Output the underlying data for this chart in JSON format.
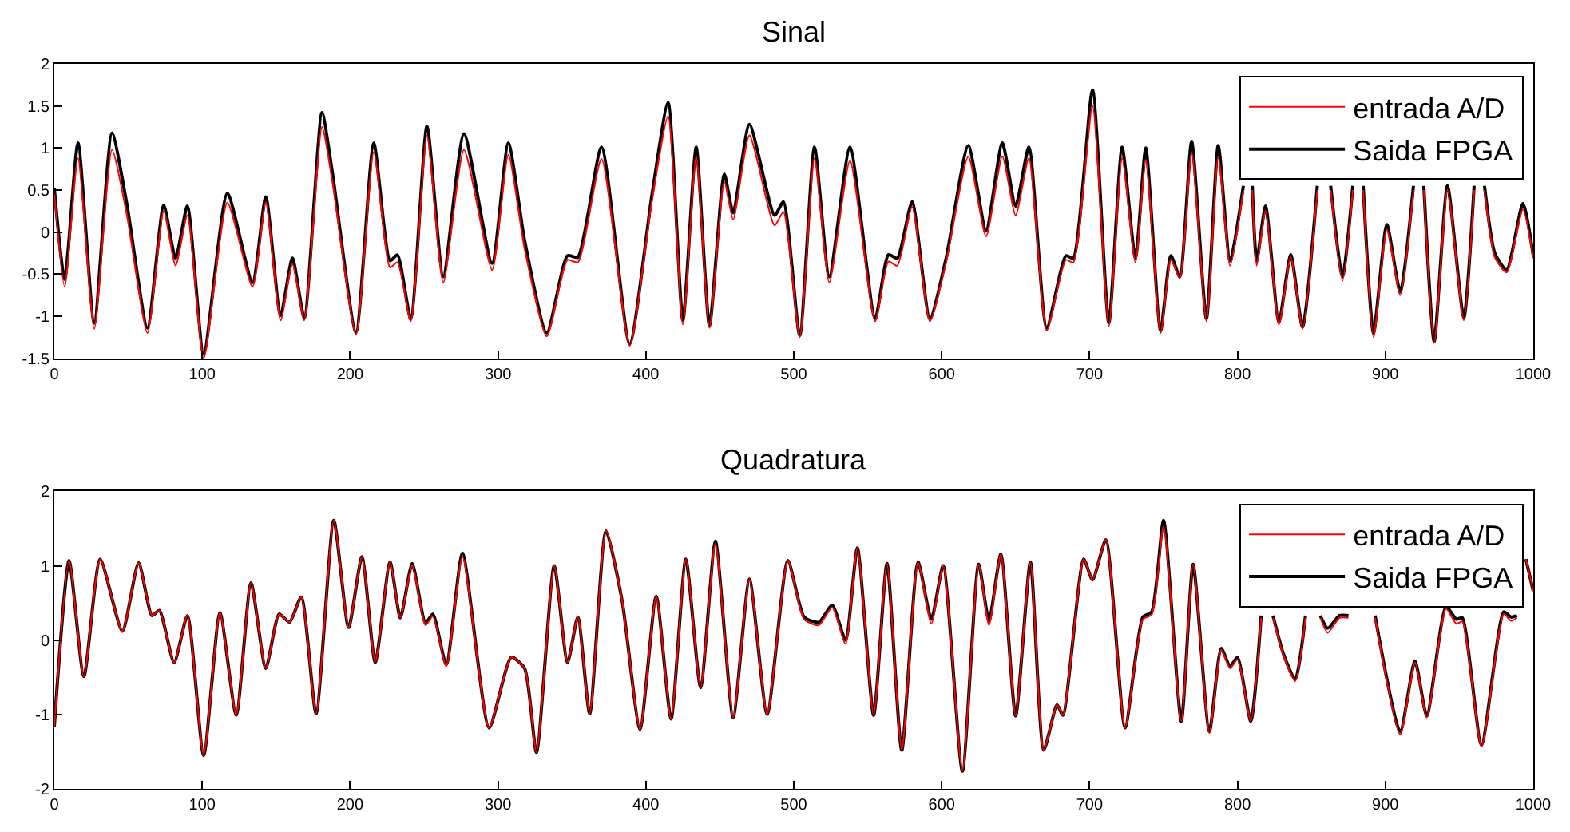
{
  "chart_data": [
    {
      "type": "line",
      "title": "Sinal",
      "legend": "top right",
      "line_style": "solid",
      "xlim": [
        0,
        1000
      ],
      "xticks": [
        0,
        100,
        200,
        300,
        400,
        500,
        600,
        700,
        800,
        900,
        1000
      ],
      "ylim": [
        -1.5,
        2
      ],
      "yticks": [
        -1.5,
        -1,
        -0.5,
        0,
        0.5,
        1,
        1.5,
        2
      ],
      "x": [
        0,
        7,
        16,
        27,
        39,
        49,
        63,
        74,
        82,
        90,
        101,
        117,
        134,
        143,
        153,
        161,
        169,
        181,
        188,
        204,
        216,
        227,
        232,
        241,
        252,
        263,
        277,
        296,
        307,
        318,
        333,
        347,
        354,
        370,
        389,
        404,
        415,
        425,
        434,
        443,
        453,
        459,
        470,
        487,
        493,
        504,
        514,
        524,
        538,
        555,
        564,
        570,
        580,
        592,
        603,
        618,
        630,
        641,
        650,
        659,
        671,
        684,
        689,
        702,
        713,
        722,
        731,
        738,
        748,
        755,
        761,
        769,
        779,
        787,
        795,
        804,
        807,
        810,
        813,
        819,
        828,
        836,
        844,
        854,
        858,
        863,
        871,
        878,
        881,
        885,
        892,
        901,
        910,
        919,
        922,
        926,
        933,
        942,
        953,
        960,
        963,
        967,
        974,
        982,
        993,
        1000
      ],
      "series": [
        {
          "name": "entrada A/D",
          "color": "#ff0000",
          "values": [
            0.45,
            -0.65,
            0.88,
            -1.15,
            0.98,
            0.21,
            -1.2,
            0.25,
            -0.4,
            0.2,
            -1.5,
            0.35,
            -0.65,
            0.35,
            -1.05,
            -0.38,
            -1.05,
            1.25,
            0.6,
            -1.22,
            0.95,
            -0.42,
            -0.36,
            -1.06,
            1.15,
            -0.6,
            0.98,
            -0.45,
            0.92,
            -0.2,
            -1.24,
            -0.33,
            -0.36,
            0.87,
            -1.35,
            0.36,
            1.38,
            -1.1,
            0.9,
            -1.14,
            0.6,
            0.15,
            1.15,
            0.08,
            0.24,
            -1.25,
            0.88,
            -0.6,
            0.85,
            -1.06,
            -0.35,
            -0.4,
            0.3,
            -1.06,
            -0.36,
            0.9,
            -0.05,
            0.9,
            0.2,
            0.88,
            -1.17,
            -0.33,
            -0.36,
            1.5,
            -1.12,
            0.88,
            -0.36,
            0.86,
            -1.2,
            -0.33,
            -0.55,
            0.95,
            -1.06,
            0.9,
            -0.4,
            0.5,
            null,
            0.5,
            -0.4,
            0.25,
            -1.1,
            -0.3,
            -1.15,
            0.5,
            null,
            0.5,
            -0.58,
            0.5,
            null,
            0.5,
            -1.25,
            0.03,
            -0.75,
            0.5,
            null,
            0.5,
            -1.32,
            0.5,
            -1.05,
            0.5,
            null,
            0.5,
            -0.3,
            -0.48,
            0.27,
            -0.31
          ]
        },
        {
          "name": "Saida FPGA",
          "color": "#000000",
          "values": [
            0.52,
            -0.56,
            1.06,
            -1.08,
            1.18,
            0.34,
            -1.14,
            0.32,
            -0.31,
            0.31,
            -1.45,
            0.46,
            -0.6,
            0.42,
            -0.99,
            -0.31,
            -1.02,
            1.42,
            0.71,
            -1.19,
            1.06,
            -0.34,
            -0.27,
            -1.03,
            1.26,
            -0.53,
            1.17,
            -0.37,
            1.06,
            -0.1,
            -1.2,
            -0.28,
            -0.3,
            1.01,
            -1.33,
            0.43,
            1.54,
            -1.05,
            1.01,
            -1.11,
            0.69,
            0.23,
            1.28,
            0.2,
            0.36,
            -1.23,
            1.01,
            -0.53,
            1.01,
            -1.03,
            -0.27,
            -0.31,
            0.36,
            -1.03,
            -0.31,
            1.03,
            0.02,
            1.06,
            0.31,
            1.01,
            -1.14,
            -0.28,
            -0.31,
            1.69,
            -1.08,
            1.01,
            -0.31,
            1.0,
            -1.17,
            -0.28,
            -0.53,
            1.08,
            -1.03,
            1.03,
            -0.34,
            0.55,
            null,
            0.55,
            -0.34,
            0.31,
            -1.07,
            -0.27,
            -1.13,
            0.55,
            null,
            0.55,
            -0.53,
            0.55,
            null,
            0.55,
            -1.2,
            0.09,
            -0.71,
            0.55,
            null,
            0.55,
            -1.3,
            0.55,
            -1.02,
            0.55,
            null,
            0.55,
            -0.25,
            -0.45,
            0.34,
            -0.28
          ]
        }
      ]
    },
    {
      "type": "line",
      "title": "Quadratura",
      "legend": "top right",
      "line_style": "solid",
      "xlim": [
        0,
        1000
      ],
      "xticks": [
        0,
        100,
        200,
        300,
        400,
        500,
        600,
        700,
        800,
        900,
        1000
      ],
      "ylim": [
        -2,
        2
      ],
      "yticks": [
        -2,
        -1,
        0,
        1,
        2
      ],
      "x": [
        0,
        10,
        20,
        31,
        46,
        57,
        66,
        71,
        81,
        90,
        101,
        112,
        123,
        133,
        143,
        152,
        159,
        167,
        177,
        189,
        199,
        208,
        217,
        227,
        234,
        242,
        251,
        256,
        265,
        276,
        294,
        309,
        318,
        326,
        338,
        347,
        354,
        362,
        373,
        384,
        396,
        407,
        417,
        427,
        437,
        447,
        459,
        470,
        482,
        496,
        507,
        517,
        526,
        535,
        543,
        554,
        563,
        573,
        584,
        593,
        601,
        614,
        625,
        632,
        640,
        650,
        660,
        669,
        678,
        682,
        696,
        702,
        711,
        724,
        736,
        742,
        750,
        762,
        770,
        781,
        789,
        795,
        800,
        809,
        816,
        820,
        824,
        831,
        839,
        846,
        851,
        856,
        861,
        869,
        875,
        884,
        893,
        910,
        920,
        928,
        941,
        948,
        952,
        965,
        980,
        985,
        989,
        991,
        995,
        1000
      ],
      "series": [
        {
          "name": "entrada A/D",
          "color": "#ff0000",
          "values": [
            -1.16,
            1.07,
            -0.49,
            1.09,
            0.12,
            1.04,
            0.33,
            0.4,
            -0.3,
            0.33,
            -1.55,
            0.37,
            -1.01,
            0.77,
            -0.38,
            0.35,
            0.24,
            0.58,
            -0.99,
            1.61,
            0.17,
            1.12,
            -0.3,
            1.05,
            0.3,
            1.0,
            0.2,
            0.32,
            -0.35,
            1.12,
            -1.18,
            -0.23,
            -0.38,
            -1.51,
            1.0,
            -0.3,
            0.31,
            -0.99,
            1.47,
            0.52,
            -1.2,
            0.59,
            -1.06,
            1.09,
            -0.64,
            1.3,
            -1.04,
            0.82,
            -1.0,
            1.07,
            0.28,
            0.2,
            0.44,
            -0.05,
            1.24,
            -1.01,
            1.03,
            -1.48,
            1.05,
            0.22,
            1.0,
            -1.76,
            1.02,
            0.2,
            1.16,
            -1.02,
            1.05,
            -1.48,
            -0.87,
            -1.01,
            1.09,
            0.81,
            1.35,
            -1.18,
            0.28,
            0.34,
            1.53,
            -1.09,
            1.02,
            -1.25,
            -0.13,
            -0.38,
            -0.26,
            -1.09,
            0.3,
            null,
            0.3,
            -0.2,
            -0.55,
            0.3,
            null,
            0.3,
            0.1,
            0.3,
            0.3,
            null,
            0.3,
            -1.27,
            -0.3,
            -1.04,
            0.42,
            0.22,
            0.25,
            -1.43,
            0.35,
            0.26,
            0.3,
            null,
            1.09,
            0.66
          ]
        },
        {
          "name": "Saida FPGA",
          "color": "#000000",
          "values": [
            -1.16,
            1.07,
            -0.49,
            1.09,
            0.12,
            1.04,
            0.33,
            0.4,
            -0.3,
            0.33,
            -1.55,
            0.37,
            -1.01,
            0.77,
            -0.38,
            0.35,
            0.24,
            0.58,
            -0.99,
            1.61,
            0.17,
            1.12,
            -0.3,
            1.05,
            0.3,
            1.03,
            0.23,
            0.35,
            -0.33,
            1.17,
            -1.18,
            -0.23,
            -0.38,
            -1.51,
            1.0,
            -0.3,
            0.31,
            -0.99,
            1.47,
            0.52,
            -1.2,
            0.59,
            -1.06,
            1.09,
            -0.64,
            1.33,
            -1.04,
            0.82,
            -1.0,
            1.07,
            0.31,
            0.24,
            0.47,
            0.0,
            1.24,
            -1.01,
            1.03,
            -1.48,
            1.05,
            0.28,
            1.0,
            -1.76,
            1.02,
            0.26,
            1.16,
            -1.02,
            1.05,
            -1.48,
            -0.87,
            -1.01,
            1.09,
            0.81,
            1.35,
            -1.18,
            0.31,
            0.38,
            1.61,
            -1.09,
            1.02,
            -1.23,
            -0.11,
            -0.35,
            -0.23,
            -1.09,
            0.33,
            null,
            0.33,
            -0.18,
            -0.53,
            0.33,
            null,
            0.33,
            0.16,
            0.33,
            0.33,
            null,
            0.33,
            -1.23,
            -0.28,
            -1.02,
            0.45,
            0.28,
            0.3,
            -1.41,
            0.38,
            0.31,
            0.33,
            null,
            1.09,
            0.66
          ]
        }
      ]
    }
  ]
}
